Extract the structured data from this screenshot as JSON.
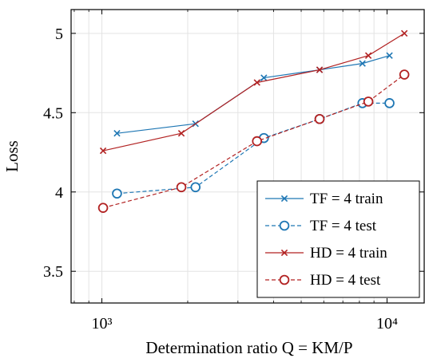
{
  "chart_data": {
    "type": "line",
    "xlabel": "Determination ratio Q = KM/P",
    "ylabel": "Loss",
    "x_scale": "log",
    "xlim": [
      780,
      13500
    ],
    "ylim": [
      3.3,
      5.15
    ],
    "x_ticks": [
      {
        "value": 1000,
        "label": "10³"
      },
      {
        "value": 10000,
        "label": "10⁴"
      }
    ],
    "y_ticks": [
      {
        "value": 3.5,
        "label": "3.5"
      },
      {
        "value": 4,
        "label": "4"
      },
      {
        "value": 4.5,
        "label": "4.5"
      },
      {
        "value": 5,
        "label": "5"
      }
    ],
    "grid": true,
    "legend_position": "bottom-right",
    "series": [
      {
        "name": "TF = 4 train",
        "color": "#1f77b4",
        "line_style": "solid",
        "marker": "x",
        "x": [
          1130,
          2130,
          3700,
          5800,
          8200,
          10200
        ],
        "y": [
          4.37,
          4.43,
          4.72,
          4.77,
          4.81,
          4.86
        ]
      },
      {
        "name": "TF = 4 test",
        "color": "#1f77b4",
        "line_style": "dashed",
        "marker": "circle",
        "x": [
          1130,
          2130,
          3700,
          5800,
          8200,
          10200
        ],
        "y": [
          3.99,
          4.03,
          4.34,
          4.46,
          4.56,
          4.56
        ]
      },
      {
        "name": "HD = 4 train",
        "color": "#b22222",
        "line_style": "solid",
        "marker": "x",
        "x": [
          1010,
          1900,
          3500,
          5800,
          8600,
          11500
        ],
        "y": [
          4.26,
          4.37,
          4.69,
          4.77,
          4.86,
          5.0
        ]
      },
      {
        "name": "HD = 4 test",
        "color": "#b22222",
        "line_style": "dashed",
        "marker": "circle",
        "x": [
          1010,
          1900,
          3500,
          5800,
          8600,
          11500
        ],
        "y": [
          3.9,
          4.03,
          4.32,
          4.46,
          4.57,
          4.74
        ]
      }
    ]
  }
}
